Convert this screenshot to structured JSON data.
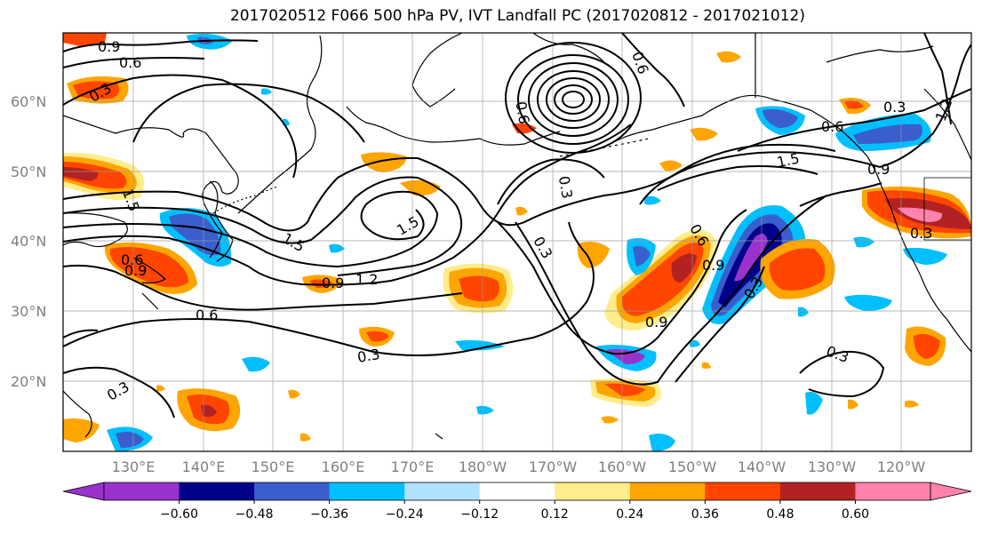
{
  "title": "2017020512 F066 500 hPa PV, IVT Landfall PC (2017020812 - 2017021012)",
  "lat_labels": [
    "60°N",
    "50°N",
    "40°N",
    "30°N",
    "20°N"
  ],
  "lon_labels": [
    "130°E",
    "140°E",
    "150°E",
    "160°E",
    "170°E",
    "180°W",
    "170°W",
    "160°W",
    "150°W",
    "140°W",
    "130°W",
    "120°W"
  ],
  "colorbar": {
    "ticks": [
      "−0.60",
      "−0.48",
      "−0.36",
      "−0.24",
      "−0.12",
      "0.12",
      "0.24",
      "0.36",
      "0.48",
      "0.60"
    ],
    "colors": [
      "#9932cc",
      "#00008b",
      "#3a5fcd",
      "#00bfff",
      "#b0e2ff",
      "#ffffff",
      "#ffec8b",
      "#ffa500",
      "#ff4500",
      "#b22222",
      "#ff82ab"
    ]
  },
  "contour_labels": [
    "0.9",
    "0.6",
    "0.3",
    "0.6",
    "0.3",
    "0.6",
    "0.9",
    "0.6",
    "0.3",
    "1.2",
    "1.5",
    "0.9",
    "1.5",
    "1.5",
    "1.5",
    "0.6",
    "0.9",
    "1.2",
    "0.6",
    "0.3",
    "0.3",
    "0.3",
    "0.9",
    "0.9",
    "0.6",
    "0.3",
    "0.3",
    "0.3",
    "0.6",
    "0.3"
  ]
}
